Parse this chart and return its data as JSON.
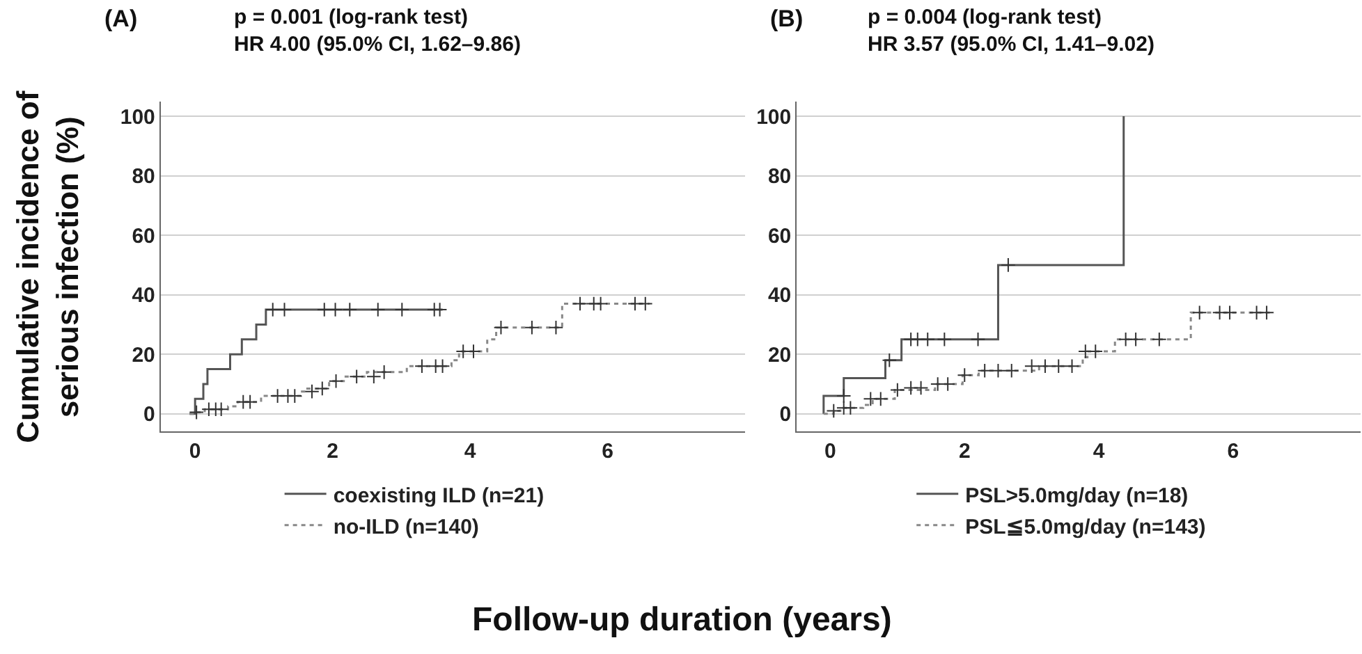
{
  "chart_data": [
    {
      "type": "step",
      "title": "(A)",
      "subtitle": "p = 0.001 (log-rank test)\nHR 4.00 (95.0% CI, 1.62–9.86)",
      "ylabel": "Cumulative incidence of\nserious infection (%)",
      "xlabel": "Follow-up duration (years)",
      "xlim": [
        -0.5,
        8
      ],
      "ylim": [
        -6,
        105
      ],
      "xticks": [
        0,
        2,
        4,
        6
      ],
      "yticks": [
        0,
        20,
        40,
        60,
        80,
        100
      ],
      "grid": "y",
      "legend": "bottom",
      "series": [
        {
          "name": "coexisting ILD (n=21)",
          "color": "#555555",
          "line_style": "solid",
          "x": [
            -0.08,
            0.0,
            0.12,
            0.18,
            0.51,
            0.68,
            0.89,
            1.03,
            3.6
          ],
          "values": [
            0,
            5,
            10,
            15,
            20,
            25,
            30,
            35,
            35
          ]
        },
        {
          "name": "no-ILD (n=140)",
          "color": "#888888",
          "line_style": "dotted",
          "x": [
            -0.08,
            0.02,
            0.14,
            0.48,
            0.62,
            0.96,
            1.54,
            1.61,
            1.95,
            2.19,
            2.5,
            3.08,
            3.73,
            3.84,
            4.25,
            4.38,
            5.34,
            6.61
          ],
          "values": [
            0,
            0.5,
            1.5,
            2.5,
            4,
            6,
            7.5,
            8.5,
            11,
            12.5,
            14,
            16,
            18,
            21,
            25,
            29,
            37,
            37
          ]
        },
        {
          "type": "scatter",
          "marker": "cross",
          "color": "#333333",
          "x": [
            1.13,
            1.3,
            1.88,
            2.04,
            2.25,
            2.66,
            3.01,
            3.48,
            3.56
          ],
          "values": [
            35,
            35,
            35,
            35,
            35,
            35,
            35,
            35,
            35
          ]
        },
        {
          "type": "scatter",
          "marker": "cross",
          "color": "#333333",
          "x": [
            0.02,
            0.2,
            0.3,
            0.38,
            0.7,
            0.8,
            1.2,
            1.35,
            1.45,
            1.7,
            1.85,
            2.05,
            2.35,
            2.6,
            2.75,
            3.3,
            3.5,
            3.6,
            3.9,
            4.05,
            4.45,
            4.9,
            5.25,
            5.6,
            5.8,
            5.9,
            6.4,
            6.55
          ],
          "values": [
            0.5,
            1.5,
            1.5,
            1.5,
            4,
            4,
            6,
            6,
            6,
            7.5,
            8.5,
            11,
            12.5,
            12.5,
            14,
            16,
            16,
            16,
            21,
            21,
            29,
            29,
            29,
            37,
            37,
            37,
            37,
            37
          ]
        }
      ]
    },
    {
      "type": "step",
      "title": "(B)",
      "subtitle": "p = 0.004 (log-rank test)\nHR 3.57 (95.0% CI, 1.41–9.02)",
      "xlim": [
        -0.5,
        7.9
      ],
      "ylim": [
        -6,
        105
      ],
      "xticks": [
        0,
        2,
        4,
        6
      ],
      "yticks": [
        0,
        20,
        40,
        60,
        80,
        100
      ],
      "grid": "y",
      "legend": "bottom",
      "series": [
        {
          "name": "PSL>5.0mg/day (n=18)",
          "color": "#555555",
          "line_style": "solid",
          "x": [
            -0.1,
            -0.1,
            0.2,
            0.82,
            1.06,
            2.5,
            4.37
          ],
          "values": [
            0,
            6,
            12,
            18,
            25,
            50,
            100
          ]
        },
        {
          "name": "PSL≦5.0mg/day (n=143)",
          "color": "#888888",
          "line_style": "dotted",
          "x": [
            -0.1,
            0.05,
            0.15,
            0.49,
            0.63,
            0.96,
            1.56,
            1.97,
            2.21,
            3.11,
            3.76,
            3.83,
            4.24,
            5.37,
            6.61
          ],
          "values": [
            0,
            1,
            2,
            3,
            5,
            8,
            10,
            13,
            14.5,
            16,
            19,
            21,
            25,
            34,
            34
          ]
        },
        {
          "type": "scatter",
          "marker": "cross",
          "color": "#333333",
          "x": [
            0.2,
            0.88,
            1.2,
            1.3,
            1.45,
            1.7,
            2.2,
            2.65
          ],
          "values": [
            6,
            18,
            25,
            25,
            25,
            25,
            25,
            50
          ]
        },
        {
          "type": "scatter",
          "marker": "cross",
          "color": "#333333",
          "x": [
            0.05,
            0.2,
            0.3,
            0.6,
            0.75,
            1.0,
            1.2,
            1.35,
            1.6,
            1.75,
            2.0,
            2.3,
            2.5,
            2.7,
            3.0,
            3.2,
            3.4,
            3.6,
            3.8,
            3.95,
            4.4,
            4.55,
            4.9,
            5.5,
            5.8,
            5.95,
            6.35,
            6.5
          ],
          "values": [
            1,
            2,
            2,
            5,
            5,
            8,
            8.7,
            8.7,
            10,
            10,
            13,
            14.5,
            14.5,
            14.5,
            16,
            16,
            16,
            16,
            21,
            21,
            25,
            25,
            25,
            34,
            34,
            34,
            34,
            34
          ]
        }
      ]
    }
  ]
}
